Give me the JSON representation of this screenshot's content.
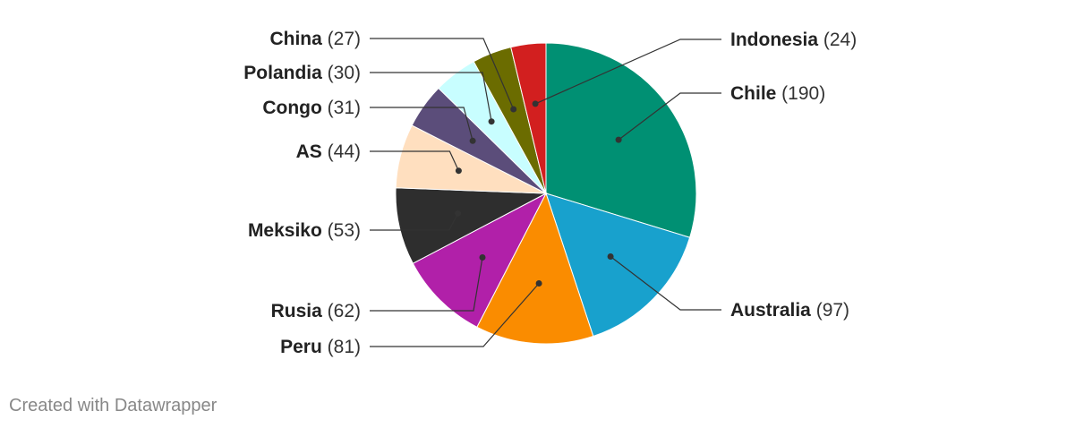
{
  "chart_data": {
    "type": "pie",
    "slices": [
      {
        "label": "Chile",
        "value": 190,
        "color": "#009073"
      },
      {
        "label": "Australia",
        "value": 97,
        "color": "#18a1cd"
      },
      {
        "label": "Peru",
        "value": 81,
        "color": "#fa8c00"
      },
      {
        "label": "Rusia",
        "value": 62,
        "color": "#b120a9"
      },
      {
        "label": "Meksiko",
        "value": 53,
        "color": "#2e2e2e"
      },
      {
        "label": "AS",
        "value": 44,
        "color": "#ffdfbf"
      },
      {
        "label": "Congo",
        "value": 31,
        "color": "#5b4d7a"
      },
      {
        "label": "Polandia",
        "value": 30,
        "color": "#c8feff"
      },
      {
        "label": "China",
        "value": 27,
        "color": "#6b6c00"
      },
      {
        "label": "Indonesia",
        "value": 24,
        "color": "#d21f1f"
      }
    ],
    "label_format": "name (value)"
  },
  "footer": {
    "credit": "Created with Datawrapper"
  }
}
